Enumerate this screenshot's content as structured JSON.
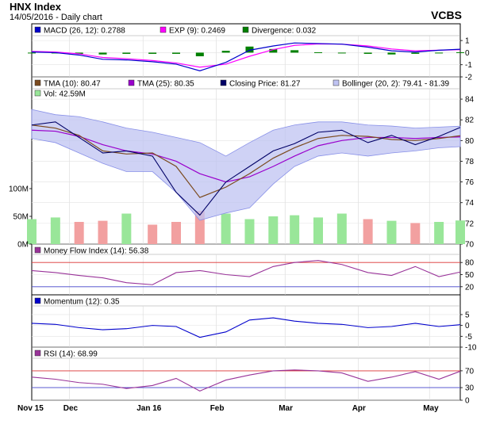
{
  "header": {
    "title": "HNX Index",
    "subtitle": "14/05/2016 - Daily chart",
    "brand": "VCBS"
  },
  "colors": {
    "macd": "#0000cc",
    "exp": "#ff00ff",
    "divergence": "#008000",
    "tma10": "#7b4a1e",
    "tma25": "#9900cc",
    "closing": "#000066",
    "bollinger_fill": "#bfc3f2",
    "bollinger_edge": "#8890e8",
    "vol_up": "#99e699",
    "vol_down": "#f2a0a0",
    "mfi": "#993399",
    "momentum": "#0000cc",
    "rsi": "#993399",
    "threshold": "#dd3333",
    "lower_threshold": "#4444cc"
  },
  "x_ticks": [
    "Nov 15",
    "Dec",
    "Jan 16",
    "Feb",
    "Mar",
    "Apr",
    "May"
  ],
  "chart_data": [
    {
      "type": "line",
      "panel": "macd",
      "legend": [
        {
          "key": "macd",
          "label": "MACD (26, 12): 0.2788"
        },
        {
          "key": "exp",
          "label": "EXP (9): 0.2469"
        },
        {
          "key": "divergence",
          "label": "Divergence: 0.032"
        }
      ],
      "y_ticks": [
        "1",
        "0",
        "-1",
        "-2"
      ],
      "ylim": [
        -2,
        1.4
      ],
      "x": [
        "2015-11-15",
        "2015-11-25",
        "2015-12-05",
        "2015-12-15",
        "2015-12-25",
        "2016-01-05",
        "2016-01-15",
        "2016-01-25",
        "2016-02-05",
        "2016-02-15",
        "2016-02-25",
        "2016-03-05",
        "2016-03-15",
        "2016-03-25",
        "2016-04-05",
        "2016-04-15",
        "2016-04-25",
        "2016-05-05",
        "2016-05-14"
      ],
      "series": [
        {
          "name": "MACD",
          "values": [
            0.05,
            0.0,
            -0.2,
            -0.55,
            -0.6,
            -0.75,
            -0.95,
            -1.5,
            -0.8,
            0.2,
            0.55,
            0.8,
            0.75,
            0.7,
            0.45,
            0.15,
            0.05,
            0.2,
            0.28
          ]
        },
        {
          "name": "EXP",
          "values": [
            0.1,
            0.05,
            -0.1,
            -0.4,
            -0.5,
            -0.65,
            -0.85,
            -1.2,
            -0.95,
            -0.3,
            0.25,
            0.6,
            0.72,
            0.7,
            0.55,
            0.3,
            0.15,
            0.2,
            0.25
          ]
        },
        {
          "name": "Divergence",
          "values": [
            -0.05,
            -0.05,
            -0.1,
            -0.15,
            -0.1,
            -0.1,
            -0.1,
            -0.3,
            0.15,
            0.5,
            0.3,
            0.2,
            0.03,
            0.0,
            -0.1,
            -0.15,
            -0.1,
            0.0,
            0.03
          ]
        }
      ]
    },
    {
      "type": "line",
      "panel": "price",
      "legend": [
        {
          "key": "tma10",
          "label": "TMA (10): 80.47"
        },
        {
          "key": "tma25",
          "label": "TMA (25): 80.35"
        },
        {
          "key": "closing",
          "label": "Closing Price: 81.27"
        },
        {
          "key": "bollinger",
          "label": "Bollinger (20, 2): 79.41 - 81.39"
        },
        {
          "key": "vol",
          "label": "Vol: 42.59M"
        }
      ],
      "y_ticks": [
        "84",
        "82",
        "80",
        "78",
        "76",
        "74",
        "72",
        "70"
      ],
      "ylim": [
        70,
        85
      ],
      "vol_ticks": [
        "100M",
        "50M",
        "0M"
      ],
      "vol_lim": [
        0,
        280
      ],
      "x": [
        "2015-11-15",
        "2015-11-25",
        "2015-12-05",
        "2015-12-15",
        "2015-12-25",
        "2016-01-05",
        "2016-01-15",
        "2016-01-25",
        "2016-02-05",
        "2016-02-15",
        "2016-02-25",
        "2016-03-05",
        "2016-03-15",
        "2016-03-25",
        "2016-04-05",
        "2016-04-15",
        "2016-04-25",
        "2016-05-05",
        "2016-05-14"
      ],
      "series": [
        {
          "name": "Closing Price",
          "values": [
            81.5,
            81.8,
            80.3,
            78.8,
            79.0,
            78.5,
            75.0,
            72.8,
            76.0,
            77.5,
            79.0,
            79.7,
            80.8,
            81.0,
            79.8,
            80.5,
            79.6,
            80.4,
            81.27
          ]
        },
        {
          "name": "TMA (10)",
          "values": [
            81.5,
            81.2,
            80.5,
            79.0,
            78.7,
            78.8,
            77.5,
            74.5,
            75.5,
            76.8,
            78.3,
            79.3,
            80.2,
            80.5,
            80.4,
            80.1,
            80.0,
            80.2,
            80.47
          ]
        },
        {
          "name": "TMA (25)",
          "values": [
            81.0,
            80.9,
            80.4,
            79.6,
            79.0,
            78.7,
            78.0,
            76.8,
            76.0,
            76.5,
            77.5,
            78.5,
            79.5,
            80.0,
            80.3,
            80.3,
            80.2,
            80.3,
            80.35
          ]
        },
        {
          "name": "Bollinger upper",
          "values": [
            83.0,
            82.5,
            82.3,
            81.8,
            81.2,
            80.8,
            80.3,
            79.8,
            78.5,
            79.8,
            81.0,
            81.5,
            81.8,
            81.8,
            81.5,
            81.4,
            81.2,
            81.3,
            81.39
          ]
        },
        {
          "name": "Bollinger lower",
          "values": [
            80.2,
            79.8,
            78.8,
            77.8,
            77.0,
            77.0,
            75.0,
            72.3,
            73.0,
            73.5,
            75.8,
            77.5,
            78.5,
            78.8,
            78.5,
            78.8,
            79.0,
            79.3,
            79.41
          ]
        },
        {
          "name": "Vol",
          "values": [
            45,
            48,
            40,
            42,
            55,
            35,
            40,
            60,
            55,
            45,
            50,
            52,
            48,
            55,
            45,
            42,
            38,
            40,
            42.59
          ]
        }
      ]
    },
    {
      "type": "line",
      "panel": "mfi",
      "legend": [
        {
          "key": "mfi",
          "label": "Money Flow Index (14): 56.38"
        }
      ],
      "y_ticks": [
        "80",
        "50",
        "20"
      ],
      "ylim": [
        0,
        100
      ],
      "thresholds": [
        80,
        20
      ],
      "x": [
        "2015-11-15",
        "2015-11-25",
        "2015-12-05",
        "2015-12-15",
        "2015-12-25",
        "2016-01-05",
        "2016-01-15",
        "2016-01-25",
        "2016-02-05",
        "2016-02-15",
        "2016-02-25",
        "2016-03-05",
        "2016-03-15",
        "2016-03-25",
        "2016-04-05",
        "2016-04-15",
        "2016-04-25",
        "2016-05-05",
        "2016-05-14"
      ],
      "series": [
        {
          "name": "Money Flow Index",
          "values": [
            60,
            55,
            48,
            42,
            30,
            25,
            55,
            60,
            50,
            45,
            70,
            80,
            85,
            75,
            55,
            48,
            70,
            45,
            56.38
          ]
        }
      ]
    },
    {
      "type": "line",
      "panel": "momentum",
      "legend": [
        {
          "key": "momentum",
          "label": "Momentum (12): 0.35"
        }
      ],
      "y_ticks": [
        "5",
        "0",
        "-5",
        "-10"
      ],
      "ylim": [
        -10,
        9
      ],
      "x": [
        "2015-11-15",
        "2015-11-25",
        "2015-12-05",
        "2015-12-15",
        "2015-12-25",
        "2016-01-05",
        "2016-01-15",
        "2016-01-25",
        "2016-02-05",
        "2016-02-15",
        "2016-02-25",
        "2016-03-05",
        "2016-03-15",
        "2016-03-25",
        "2016-04-05",
        "2016-04-15",
        "2016-04-25",
        "2016-05-05",
        "2016-05-14"
      ],
      "series": [
        {
          "name": "Momentum",
          "values": [
            1,
            0.5,
            -1,
            -2,
            -1.5,
            0,
            -0.5,
            -5.5,
            -3,
            2.5,
            3.5,
            2,
            1,
            0.5,
            -1,
            -0.5,
            1,
            -0.5,
            0.35
          ]
        }
      ]
    },
    {
      "type": "line",
      "panel": "rsi",
      "legend": [
        {
          "key": "rsi",
          "label": "RSI (14): 68.99"
        }
      ],
      "y_ticks": [
        "70",
        "30",
        "0"
      ],
      "ylim": [
        0,
        100
      ],
      "thresholds": [
        70,
        30
      ],
      "x": [
        "2015-11-15",
        "2015-11-25",
        "2015-12-05",
        "2015-12-15",
        "2015-12-25",
        "2016-01-05",
        "2016-01-15",
        "2016-01-25",
        "2016-02-05",
        "2016-02-15",
        "2016-02-25",
        "2016-03-05",
        "2016-03-15",
        "2016-03-25",
        "2016-04-05",
        "2016-04-15",
        "2016-04-25",
        "2016-05-05",
        "2016-05-14"
      ],
      "series": [
        {
          "name": "RSI",
          "values": [
            55,
            50,
            42,
            38,
            28,
            35,
            52,
            22,
            48,
            60,
            70,
            72,
            70,
            65,
            45,
            55,
            68,
            50,
            68.99
          ]
        }
      ]
    }
  ]
}
